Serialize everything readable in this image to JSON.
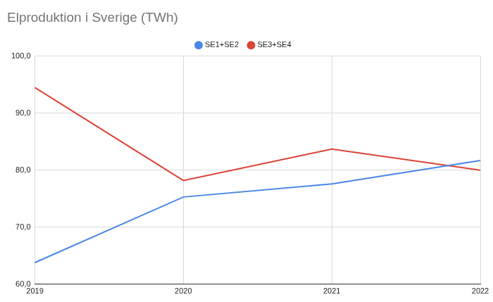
{
  "chart_data": {
    "type": "line",
    "title": "Elproduktion i Sverige (TWh)",
    "categories": [
      "2019",
      "2020",
      "2021",
      "2022"
    ],
    "series": [
      {
        "name": "SE1+SE2",
        "color": "#4a86e8",
        "values": [
          63.8,
          75.3,
          77.6,
          81.7
        ]
      },
      {
        "name": "SE3+SE4",
        "color": "#db4437",
        "values": [
          94.5,
          78.2,
          83.7,
          80.0
        ]
      }
    ],
    "ylim": [
      60,
      100
    ],
    "yticks": [
      {
        "value": 60,
        "label": "60,0"
      },
      {
        "value": 70,
        "label": "70,0"
      },
      {
        "value": 80,
        "label": "80,0"
      },
      {
        "value": 90,
        "label": "90,0"
      },
      {
        "value": 100,
        "label": "100,0"
      }
    ],
    "grid": true,
    "legend": "top"
  }
}
